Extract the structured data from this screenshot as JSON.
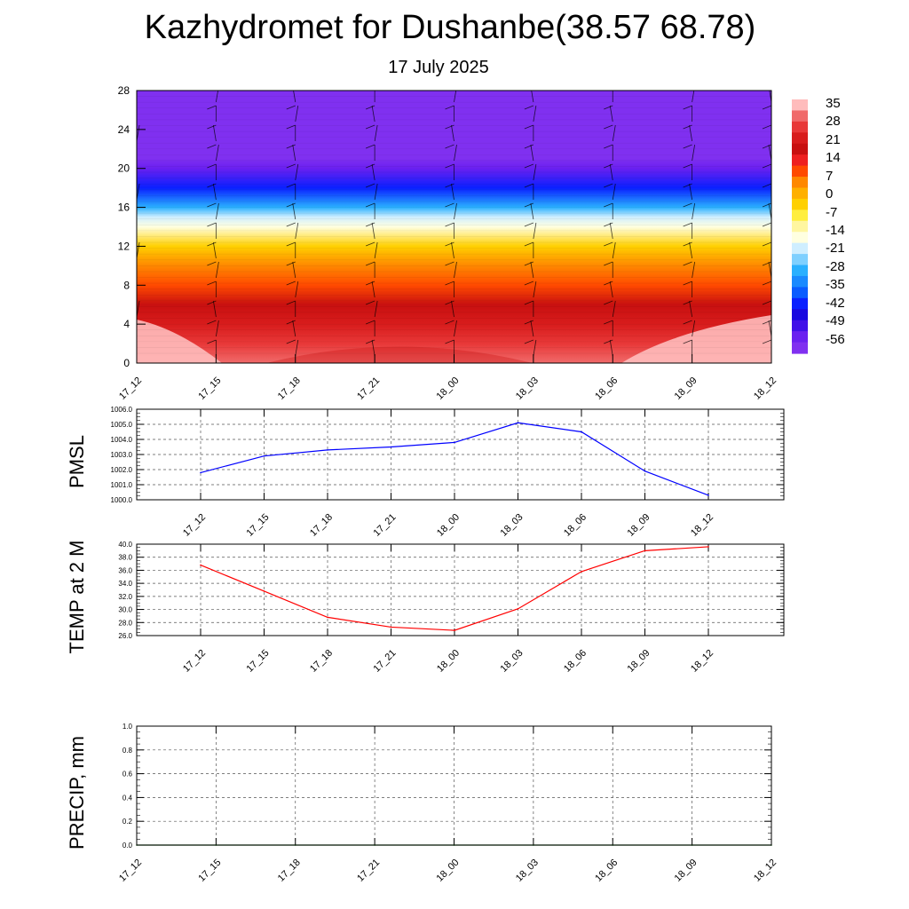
{
  "title": "Kazhydromet for Dushanbe(38.57 68.78)",
  "subtitle": "17 July 2025",
  "chart_data": [
    {
      "type": "heatmap",
      "name": "Temperature / wind cross-section",
      "x_ticks": [
        "17_12",
        "17_15",
        "17_18",
        "17_21",
        "18_00",
        "18_03",
        "18_06",
        "18_09",
        "18_12"
      ],
      "y_ticks": [
        "0",
        "4",
        "8",
        "12",
        "16",
        "20",
        "24",
        "28"
      ],
      "ylim": [
        0,
        28
      ],
      "colorbar_labels": [
        "35",
        "28",
        "21",
        "14",
        "7",
        "0",
        "-7",
        "-14",
        "-21",
        "-28",
        "-35",
        "-42",
        "-49",
        "-56"
      ],
      "colorbar_colors": [
        "#ffbcbc",
        "#f06a6a",
        "#e83838",
        "#d81c1c",
        "#c81010",
        "#ee2020",
        "#ff4a00",
        "#ff8800",
        "#ffb000",
        "#ffd000",
        "#ffee40",
        "#fff6a0",
        "#ffffe0",
        "#cfeeff",
        "#7fd0ff",
        "#2ab0ff",
        "#1a8aff",
        "#0a5cff",
        "#0a20ff",
        "#1808e0",
        "#4010e8",
        "#6a20f0",
        "#8030f0"
      ],
      "colorbar_value_range": [
        -60,
        40
      ],
      "temperature_profile": [
        {
          "z": 0,
          "t": 36
        },
        {
          "z": 2,
          "t": 33
        },
        {
          "z": 4,
          "t": 28
        },
        {
          "z": 6,
          "t": 22
        },
        {
          "z": 8,
          "t": 15
        },
        {
          "z": 10,
          "t": 7
        },
        {
          "z": 12,
          "t": -2
        },
        {
          "z": 14,
          "t": -14
        },
        {
          "z": 15,
          "t": -20
        },
        {
          "z": 16,
          "t": -28
        },
        {
          "z": 18,
          "t": -40
        },
        {
          "z": 20,
          "t": -55
        },
        {
          "z": 21,
          "t": -60
        },
        {
          "z": 28,
          "t": -60
        }
      ]
    },
    {
      "type": "line",
      "ylabel": "PMSL",
      "x_ticks": [
        "17_12",
        "17_15",
        "17_18",
        "17_21",
        "18_00",
        "18_03",
        "18_06",
        "18_09",
        "18_12"
      ],
      "y_ticks": [
        "1000.0",
        "1001.0",
        "1002.0",
        "1003.0",
        "1004.0",
        "1005.0",
        "1006.0"
      ],
      "ylim": [
        1000,
        1006
      ],
      "color": "#0000ff",
      "values": [
        1001.8,
        1002.9,
        1003.3,
        1003.5,
        1003.8,
        1005.1,
        1004.5,
        1001.9,
        1000.3
      ]
    },
    {
      "type": "line",
      "ylabel": "TEMP at 2 M",
      "x_ticks": [
        "17_12",
        "17_15",
        "17_18",
        "17_21",
        "18_00",
        "18_03",
        "18_06",
        "18_09",
        "18_12"
      ],
      "y_ticks": [
        "26.0",
        "28.0",
        "30.0",
        "32.0",
        "34.0",
        "36.0",
        "38.0",
        "40.0"
      ],
      "ylim": [
        26,
        40
      ],
      "color": "#ff0000",
      "values": [
        36.8,
        32.8,
        28.8,
        27.3,
        26.8,
        30.1,
        35.8,
        39.0,
        39.6
      ]
    },
    {
      "type": "line",
      "ylabel": "PRECIP, mm",
      "x_ticks": [
        "17_12",
        "17_15",
        "17_18",
        "17_21",
        "18_00",
        "18_03",
        "18_06",
        "18_09",
        "18_12"
      ],
      "y_ticks": [
        "0.0",
        "0.2",
        "0.4",
        "0.6",
        "0.8",
        "1.0"
      ],
      "ylim": [
        0,
        1
      ],
      "color": "#006400",
      "values": [
        0,
        0,
        0,
        0,
        0,
        0,
        0,
        0,
        0
      ]
    }
  ]
}
